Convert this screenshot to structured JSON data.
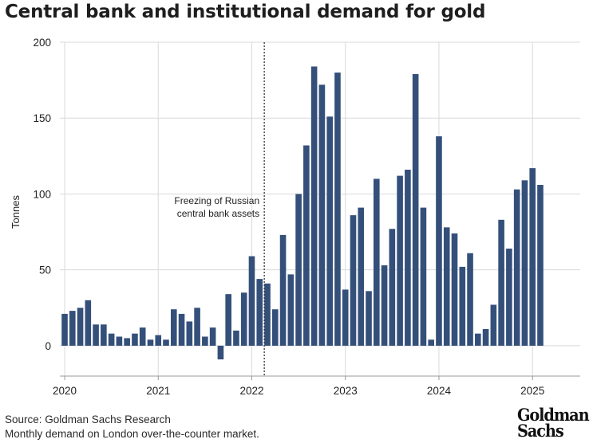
{
  "title": "Central bank and institutional demand for gold",
  "footer": {
    "source": "Source: Goldman Sachs Research",
    "note": "Monthly demand on London over-the-counter market."
  },
  "logo": {
    "line1": "Goldman",
    "line2": "Sachs"
  },
  "colors": {
    "bar": "#34507a",
    "grid": "#d9d9d9",
    "axis": "#999999",
    "annotation_line": "#333333"
  },
  "chart_data": {
    "type": "bar",
    "title": "Central bank and institutional demand for gold",
    "xlabel": "",
    "ylabel": "Tonnes",
    "ylim": [
      -20,
      200
    ],
    "yticks": [
      0,
      50,
      100,
      150,
      200
    ],
    "xtick_labels": [
      "2020",
      "2021",
      "2022",
      "2023",
      "2024",
      "2025"
    ],
    "grid": true,
    "start_month": "2020-01",
    "series": [
      {
        "values": [
          21,
          23,
          25,
          30,
          14,
          14,
          8,
          6,
          5,
          8,
          12,
          4,
          7,
          4,
          24,
          21,
          16,
          25,
          6,
          12,
          -9,
          34,
          10,
          35,
          59,
          44,
          41,
          24,
          73,
          47,
          100,
          132,
          184,
          172,
          151,
          180,
          37,
          86,
          91,
          36,
          110,
          53,
          77,
          112,
          116,
          179,
          91,
          4,
          138,
          78,
          74,
          52,
          61,
          8,
          11,
          27,
          83,
          64,
          103,
          109,
          117,
          106
        ]
      }
    ],
    "annotation": {
      "label_line1": "Freezing of Russian",
      "label_line2": "central bank assets",
      "date": "2022-03"
    }
  }
}
